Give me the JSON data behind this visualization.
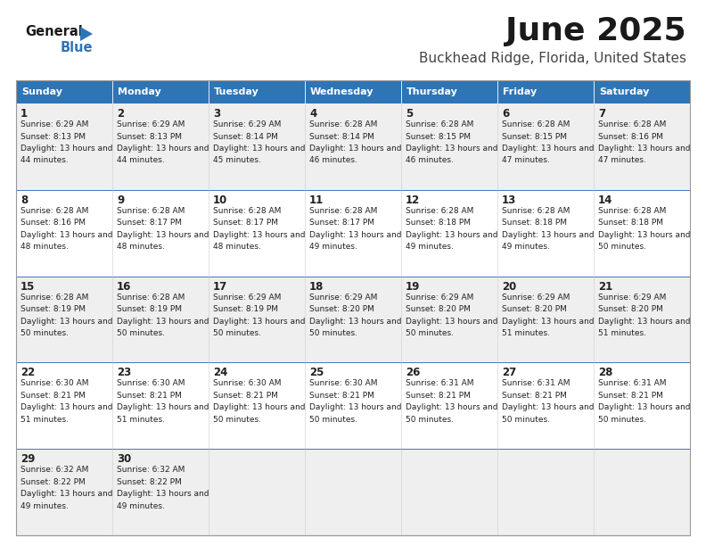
{
  "title": "June 2025",
  "subtitle": "Buckhead Ridge, Florida, United States",
  "days_of_week": [
    "Sunday",
    "Monday",
    "Tuesday",
    "Wednesday",
    "Thursday",
    "Friday",
    "Saturday"
  ],
  "header_bg": "#2E75B6",
  "header_text": "#FFFFFF",
  "row_bg_light": "#EFEFEF",
  "row_bg_white": "#FFFFFF",
  "cell_border_color": "#BBBBBB",
  "cell_border_blue": "#4472C4",
  "day_number_color": "#222222",
  "text_color": "#222222",
  "logo_text_general": "General",
  "logo_text_blue": "Blue",
  "logo_arrow_color": "#2E75B6",
  "calendar": [
    [
      {
        "day": 1,
        "sunrise": "6:29 AM",
        "sunset": "8:13 PM",
        "daylight_h": "13 hours",
        "daylight_m": "44 minutes."
      },
      {
        "day": 2,
        "sunrise": "6:29 AM",
        "sunset": "8:13 PM",
        "daylight_h": "13 hours",
        "daylight_m": "44 minutes."
      },
      {
        "day": 3,
        "sunrise": "6:29 AM",
        "sunset": "8:14 PM",
        "daylight_h": "13 hours",
        "daylight_m": "45 minutes."
      },
      {
        "day": 4,
        "sunrise": "6:28 AM",
        "sunset": "8:14 PM",
        "daylight_h": "13 hours",
        "daylight_m": "46 minutes."
      },
      {
        "day": 5,
        "sunrise": "6:28 AM",
        "sunset": "8:15 PM",
        "daylight_h": "13 hours",
        "daylight_m": "46 minutes."
      },
      {
        "day": 6,
        "sunrise": "6:28 AM",
        "sunset": "8:15 PM",
        "daylight_h": "13 hours",
        "daylight_m": "47 minutes."
      },
      {
        "day": 7,
        "sunrise": "6:28 AM",
        "sunset": "8:16 PM",
        "daylight_h": "13 hours",
        "daylight_m": "47 minutes."
      }
    ],
    [
      {
        "day": 8,
        "sunrise": "6:28 AM",
        "sunset": "8:16 PM",
        "daylight_h": "13 hours",
        "daylight_m": "48 minutes."
      },
      {
        "day": 9,
        "sunrise": "6:28 AM",
        "sunset": "8:17 PM",
        "daylight_h": "13 hours",
        "daylight_m": "48 minutes."
      },
      {
        "day": 10,
        "sunrise": "6:28 AM",
        "sunset": "8:17 PM",
        "daylight_h": "13 hours",
        "daylight_m": "48 minutes."
      },
      {
        "day": 11,
        "sunrise": "6:28 AM",
        "sunset": "8:17 PM",
        "daylight_h": "13 hours",
        "daylight_m": "49 minutes."
      },
      {
        "day": 12,
        "sunrise": "6:28 AM",
        "sunset": "8:18 PM",
        "daylight_h": "13 hours",
        "daylight_m": "49 minutes."
      },
      {
        "day": 13,
        "sunrise": "6:28 AM",
        "sunset": "8:18 PM",
        "daylight_h": "13 hours",
        "daylight_m": "49 minutes."
      },
      {
        "day": 14,
        "sunrise": "6:28 AM",
        "sunset": "8:18 PM",
        "daylight_h": "13 hours",
        "daylight_m": "50 minutes."
      }
    ],
    [
      {
        "day": 15,
        "sunrise": "6:28 AM",
        "sunset": "8:19 PM",
        "daylight_h": "13 hours",
        "daylight_m": "50 minutes."
      },
      {
        "day": 16,
        "sunrise": "6:28 AM",
        "sunset": "8:19 PM",
        "daylight_h": "13 hours",
        "daylight_m": "50 minutes."
      },
      {
        "day": 17,
        "sunrise": "6:29 AM",
        "sunset": "8:19 PM",
        "daylight_h": "13 hours",
        "daylight_m": "50 minutes."
      },
      {
        "day": 18,
        "sunrise": "6:29 AM",
        "sunset": "8:20 PM",
        "daylight_h": "13 hours",
        "daylight_m": "50 minutes."
      },
      {
        "day": 19,
        "sunrise": "6:29 AM",
        "sunset": "8:20 PM",
        "daylight_h": "13 hours",
        "daylight_m": "50 minutes."
      },
      {
        "day": 20,
        "sunrise": "6:29 AM",
        "sunset": "8:20 PM",
        "daylight_h": "13 hours",
        "daylight_m": "51 minutes."
      },
      {
        "day": 21,
        "sunrise": "6:29 AM",
        "sunset": "8:20 PM",
        "daylight_h": "13 hours",
        "daylight_m": "51 minutes."
      }
    ],
    [
      {
        "day": 22,
        "sunrise": "6:30 AM",
        "sunset": "8:21 PM",
        "daylight_h": "13 hours",
        "daylight_m": "51 minutes."
      },
      {
        "day": 23,
        "sunrise": "6:30 AM",
        "sunset": "8:21 PM",
        "daylight_h": "13 hours",
        "daylight_m": "51 minutes."
      },
      {
        "day": 24,
        "sunrise": "6:30 AM",
        "sunset": "8:21 PM",
        "daylight_h": "13 hours",
        "daylight_m": "50 minutes."
      },
      {
        "day": 25,
        "sunrise": "6:30 AM",
        "sunset": "8:21 PM",
        "daylight_h": "13 hours",
        "daylight_m": "50 minutes."
      },
      {
        "day": 26,
        "sunrise": "6:31 AM",
        "sunset": "8:21 PM",
        "daylight_h": "13 hours",
        "daylight_m": "50 minutes."
      },
      {
        "day": 27,
        "sunrise": "6:31 AM",
        "sunset": "8:21 PM",
        "daylight_h": "13 hours",
        "daylight_m": "50 minutes."
      },
      {
        "day": 28,
        "sunrise": "6:31 AM",
        "sunset": "8:21 PM",
        "daylight_h": "13 hours",
        "daylight_m": "50 minutes."
      }
    ],
    [
      {
        "day": 29,
        "sunrise": "6:32 AM",
        "sunset": "8:22 PM",
        "daylight_h": "13 hours",
        "daylight_m": "49 minutes."
      },
      {
        "day": 30,
        "sunrise": "6:32 AM",
        "sunset": "8:22 PM",
        "daylight_h": "13 hours",
        "daylight_m": "49 minutes."
      },
      null,
      null,
      null,
      null,
      null
    ]
  ],
  "fig_width": 7.92,
  "fig_height": 6.12,
  "dpi": 100
}
